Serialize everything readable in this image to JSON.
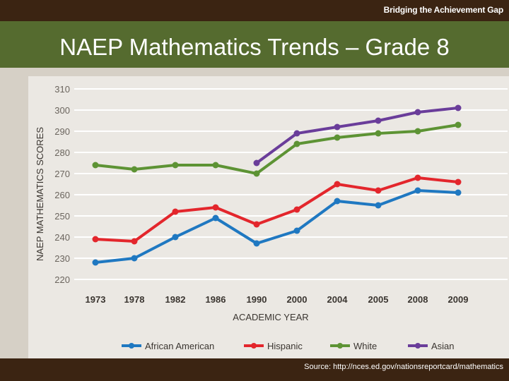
{
  "header": {
    "brand": "Bridging the Achievement Gap"
  },
  "slide": {
    "title": "NAEP Mathematics Trends – Grade 8"
  },
  "footer": {
    "source": "Source: http://nces.ed.gov/nationsreportcard/mathematics"
  },
  "chart_data": {
    "type": "line",
    "title": "",
    "xlabel": "ACADEMIC YEAR",
    "ylabel": "NAEP MATHEMATICS SCORES",
    "categories": [
      "1973",
      "1978",
      "1982",
      "1986",
      "1990",
      "2000",
      "2004",
      "2005",
      "2008",
      "2009"
    ],
    "yticks": [
      "310",
      "300",
      "290",
      "280",
      "270",
      "260",
      "250",
      "240",
      "230",
      "220"
    ],
    "ylim": [
      220,
      310
    ],
    "grid": true,
    "legend": "bottom",
    "series": [
      {
        "name": "African American",
        "color": "#1f78c1",
        "values": [
          228,
          230,
          240,
          249,
          237,
          243,
          257,
          255,
          262,
          261
        ]
      },
      {
        "name": "Hispanic",
        "color": "#e3262c",
        "values": [
          239,
          238,
          252,
          254,
          246,
          253,
          265,
          262,
          268,
          266
        ]
      },
      {
        "name": "White",
        "color": "#5d9334",
        "values": [
          274,
          272,
          274,
          274,
          270,
          284,
          287,
          289,
          290,
          293
        ]
      },
      {
        "name": "Asian",
        "color": "#6a3d9a",
        "values": [
          null,
          null,
          null,
          null,
          275,
          289,
          292,
          295,
          299,
          301
        ]
      }
    ]
  }
}
